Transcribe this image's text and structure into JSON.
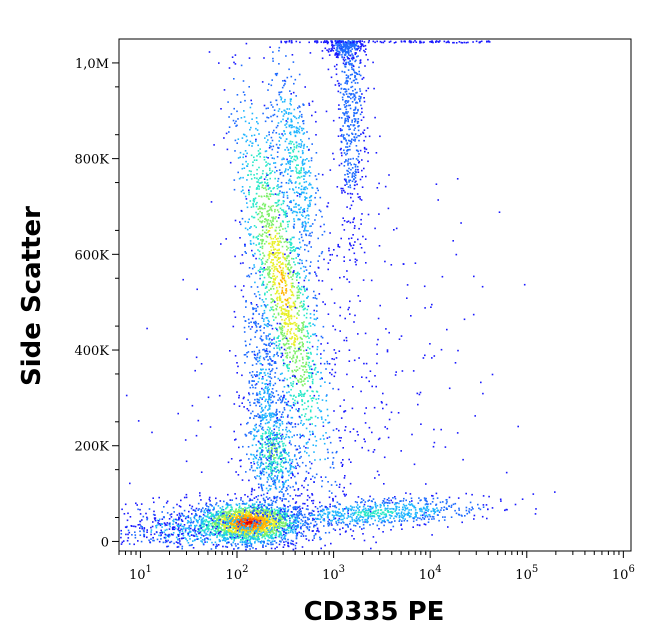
{
  "chart_data": {
    "type": "scatter",
    "plot_style": "flow-cytometry density dot plot (pseudocolor)",
    "xlabel": "CD335 PE",
    "ylabel": "Side Scatter",
    "x_scale": "log",
    "xlim": [
      6,
      1200000
    ],
    "ylim": [
      -20000,
      1050000
    ],
    "x_ticks": [
      {
        "value": 10,
        "base": "10",
        "exp": "1"
      },
      {
        "value": 100,
        "base": "10",
        "exp": "2"
      },
      {
        "value": 1000,
        "base": "10",
        "exp": "3"
      },
      {
        "value": 10000,
        "base": "10",
        "exp": "4"
      },
      {
        "value": 100000,
        "base": "10",
        "exp": "5"
      },
      {
        "value": 1000000,
        "base": "10",
        "exp": "6"
      }
    ],
    "y_ticks": [
      {
        "value": 0,
        "label": "0"
      },
      {
        "value": 200000,
        "label": "200K"
      },
      {
        "value": 400000,
        "label": "400K"
      },
      {
        "value": 600000,
        "label": "600K"
      },
      {
        "value": 800000,
        "label": "800K"
      },
      {
        "value": 1000000,
        "label": "1,0M"
      }
    ],
    "density_colors": [
      "#1a1aff",
      "#1e6bff",
      "#1fb5ff",
      "#2ae8c8",
      "#7ef06a",
      "#e8f02a",
      "#ffb400",
      "#ff5a00",
      "#e00000"
    ],
    "populations": [
      {
        "x_center": 180,
        "y_center": 45000,
        "note": "dense SSC-low CD335-negative cluster"
      },
      {
        "x_center": 320,
        "y_center": 550000,
        "note": "elongated SSC-high CD335-negative population"
      },
      {
        "x_center": 300,
        "y_center": 200000,
        "note": "intermediate SSC population"
      },
      {
        "x_center": 5000,
        "y_center": 60000,
        "note": "CD335-positive SSC-low population"
      },
      {
        "x_center": 2000,
        "y_center": 900000,
        "note": "sparse vertical streak near top"
      }
    ]
  }
}
